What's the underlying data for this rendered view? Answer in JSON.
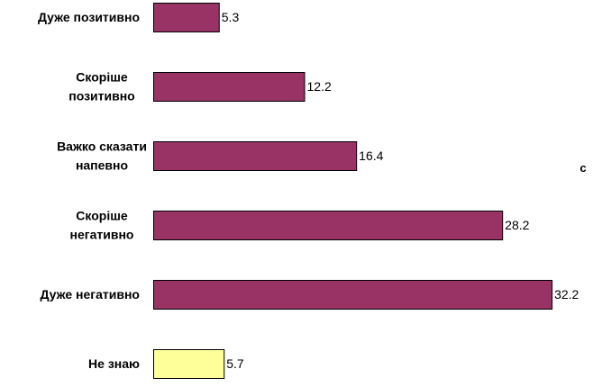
{
  "chart_data": {
    "type": "bar",
    "orientation": "horizontal",
    "title": "",
    "xlabel": "",
    "ylabel": "",
    "categories": [
      [
        "Дуже позитивно"
      ],
      [
        "Скоріше",
        "позитивно"
      ],
      [
        "Важко сказати",
        "напевно"
      ],
      [
        "Скоріше",
        "негативно"
      ],
      [
        "Дуже негативно"
      ],
      [
        "Не знаю"
      ]
    ],
    "values": [
      5.3,
      12.2,
      16.4,
      28.2,
      32.2,
      5.7
    ],
    "value_labels": [
      "5.3",
      "12.2",
      "16.4",
      "28.2",
      "32.2",
      "5.7"
    ],
    "bar_colors": [
      "#993366",
      "#993366",
      "#993366",
      "#993366",
      "#993366",
      "#ffff99"
    ],
    "xlim": [
      0,
      35
    ],
    "grid": false,
    "legend": "none"
  },
  "stray_text": "c"
}
